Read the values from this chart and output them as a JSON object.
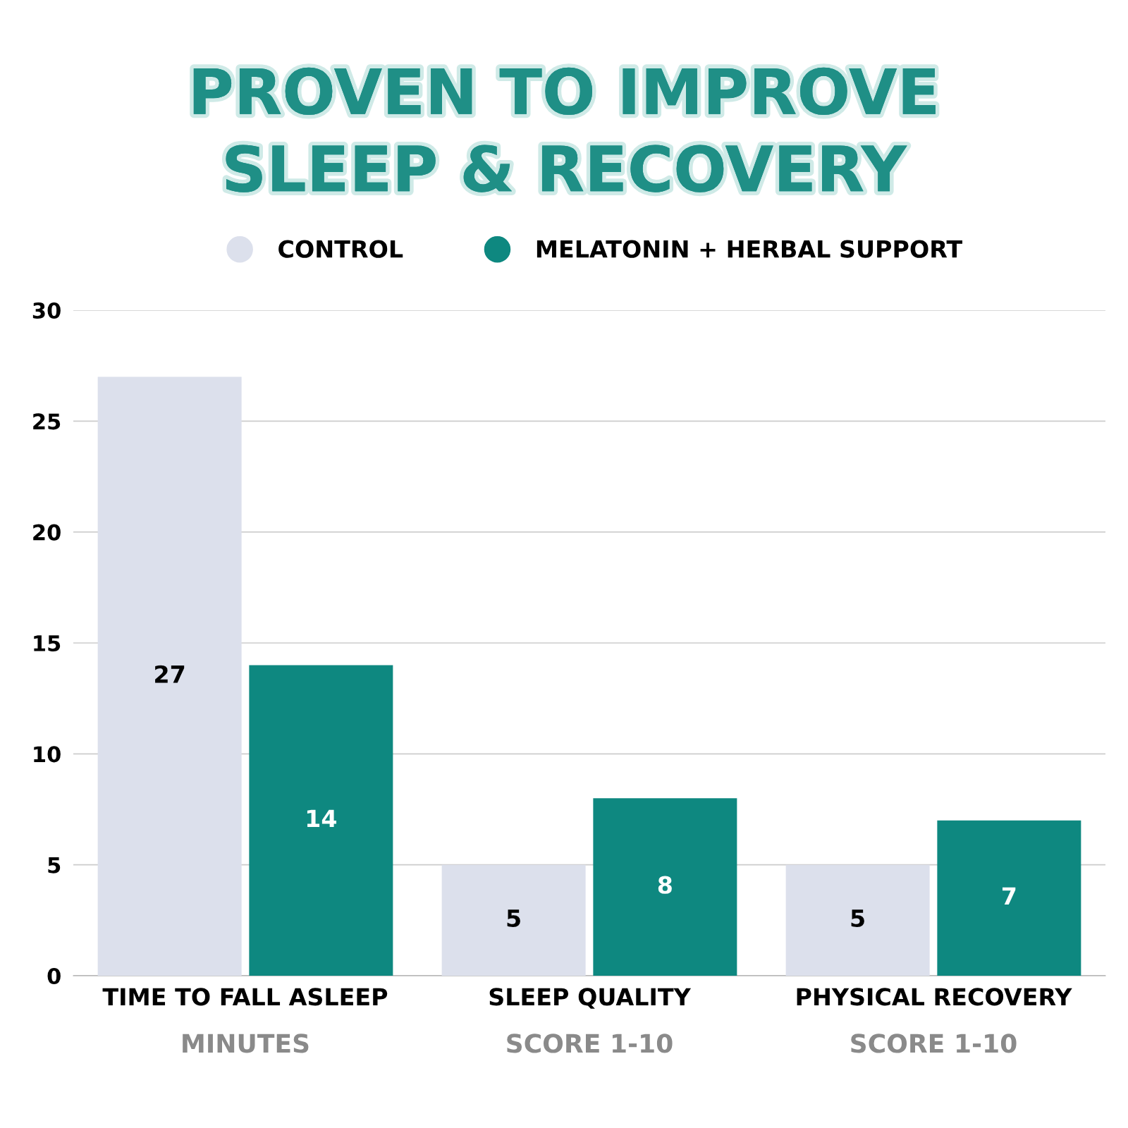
{
  "chart_data": {
    "type": "bar",
    "title": "PROVEN TO IMPROVE\nSLEEP & RECOVERY",
    "categories": [
      "TIME TO FALL ASLEEP",
      "SLEEP QUALITY",
      "PHYSICAL RECOVERY"
    ],
    "series": [
      {
        "name": "CONTROL",
        "color": "#dce0ec",
        "values": [
          27,
          5,
          5
        ]
      },
      {
        "name": "MELATONIN + HERBAL SUPPORT",
        "color": "#0e8880",
        "values": [
          14,
          8,
          7
        ]
      }
    ],
    "annotations": [
      "MINUTES",
      "SCORE 1-10",
      "SCORE 1-10"
    ],
    "ylim": [
      0,
      30
    ],
    "yticks": [
      0,
      5,
      10,
      15,
      20,
      25,
      30
    ],
    "grid": "y",
    "legend": "top",
    "data_labels": true
  }
}
